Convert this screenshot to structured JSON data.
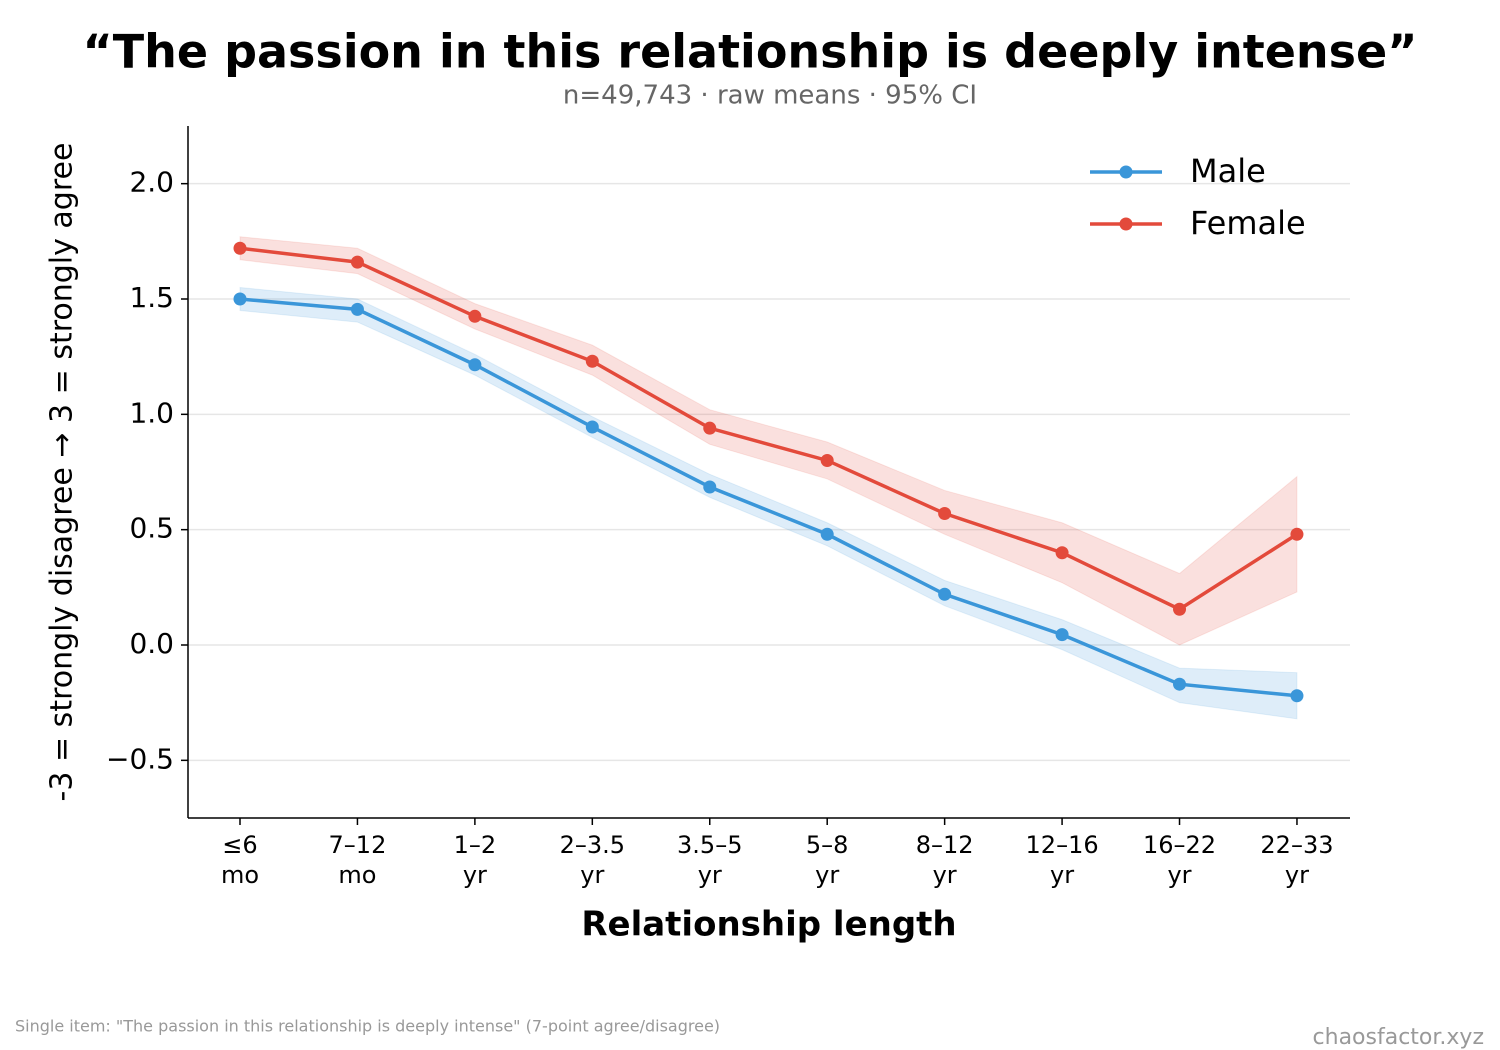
{
  "chart_data": {
    "type": "line",
    "title": "“The passion in this relationship is deeply intense”",
    "subtitle": "n=49,743 · raw means · 95% CI",
    "x_label": "Relationship length",
    "y_label": "-3 = strongly disagree → 3 = strongly agree",
    "note": "Single item: \"The passion in this relationship is deeply intense\" (7-point agree/disagree)",
    "watermark": "chaosfactor.xyz",
    "categories": [
      "≤6\nmo",
      "7–12\nmo",
      "1–2\nyr",
      "2–3.5\nyr",
      "3.5–5\nyr",
      "5–8\nyr",
      "8–12\nyr",
      "12–16\nyr",
      "16–22\nyr",
      "22–33\nyr"
    ],
    "series": [
      {
        "name": "Male",
        "color": "#3a96d9",
        "values": [
          1.5,
          1.455,
          1.215,
          0.945,
          0.685,
          0.48,
          0.22,
          0.045,
          -0.17,
          -0.22
        ],
        "lower": [
          1.45,
          1.4,
          1.17,
          0.9,
          0.64,
          0.43,
          0.17,
          -0.02,
          -0.25,
          -0.32
        ],
        "upper": [
          1.55,
          1.5,
          1.26,
          0.99,
          0.74,
          0.53,
          0.28,
          0.11,
          -0.1,
          -0.12
        ]
      },
      {
        "name": "Female",
        "color": "#e34a3b",
        "values": [
          1.72,
          1.66,
          1.425,
          1.23,
          0.94,
          0.8,
          0.57,
          0.4,
          0.155,
          0.48
        ],
        "lower": [
          1.67,
          1.61,
          1.37,
          1.17,
          0.87,
          0.72,
          0.48,
          0.27,
          0.0,
          0.23
        ],
        "upper": [
          1.77,
          1.72,
          1.48,
          1.3,
          1.02,
          0.88,
          0.67,
          0.53,
          0.31,
          0.73
        ]
      }
    ],
    "ylim": [
      -0.75,
      2.25
    ],
    "yticks": [
      {
        "value": -0.5,
        "label": "−0.5"
      },
      {
        "value": 0,
        "label": "0.0"
      },
      {
        "value": 0.5,
        "label": "0.5"
      },
      {
        "value": 1,
        "label": "1.0"
      },
      {
        "value": 1.5,
        "label": "1.5"
      },
      {
        "value": 2,
        "label": "2.0"
      }
    ],
    "grid": true,
    "legend": "upper-right"
  }
}
